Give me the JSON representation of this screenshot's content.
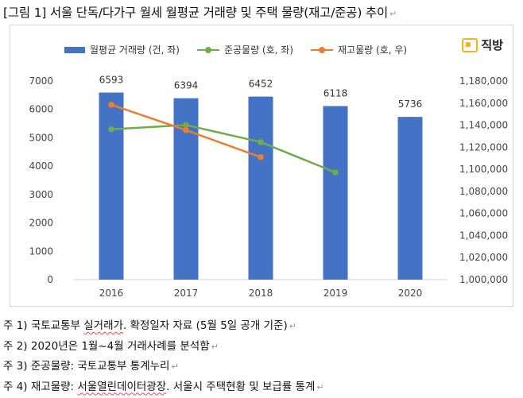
{
  "title": "[그림 1] 서울 단독/다가구 월세 월평균 거래량 및 주택 물량(재고/준공) 추이",
  "logo": {
    "text": "직방"
  },
  "legend": [
    {
      "label": "월평균 거래량 (건, 좌)",
      "color": "#4472c4",
      "kind": "bar"
    },
    {
      "label": "준공물량 (호, 좌)",
      "color": "#70ad47",
      "kind": "line"
    },
    {
      "label": "재고물량 (호, 우)",
      "color": "#ed7d31",
      "kind": "line"
    }
  ],
  "chart_data": {
    "type": "bar",
    "title": "",
    "xlabel": "",
    "ylabel": "",
    "categories": [
      "2016",
      "2017",
      "2018",
      "2019",
      "2020"
    ],
    "ylim": [
      0,
      7000
    ],
    "y_ticks": [
      0,
      1000,
      2000,
      3000,
      4000,
      5000,
      6000,
      7000
    ],
    "y2lim": [
      1000000,
      1180000
    ],
    "y2_ticks": [
      "1,000,000",
      "1,020,000",
      "1,040,000",
      "1,060,000",
      "1,080,000",
      "1,100,000",
      "1,120,000",
      "1,140,000",
      "1,160,000",
      "1,180,000"
    ],
    "y2_tick_values": [
      1000000,
      1020000,
      1040000,
      1060000,
      1080000,
      1100000,
      1120000,
      1140000,
      1160000,
      1180000
    ],
    "grid": false,
    "legend_position": "top",
    "series": [
      {
        "name": "월평균 거래량 (건, 좌)",
        "kind": "bar",
        "axis": "left",
        "color": "#4472c4",
        "values": [
          6593,
          6394,
          6452,
          6118,
          5736
        ],
        "labels": [
          "6593",
          "6394",
          "6452",
          "6118",
          "5736"
        ]
      },
      {
        "name": "준공물량 (호, 좌)",
        "kind": "line",
        "axis": "left",
        "color": "#70ad47",
        "values": [
          5300,
          5450,
          4850,
          3780,
          null
        ]
      },
      {
        "name": "재고물량 (호, 우)",
        "kind": "line",
        "axis": "right",
        "color": "#ed7d31",
        "values": [
          1158500,
          1135500,
          1111000,
          null,
          null
        ]
      }
    ]
  },
  "notes": [
    {
      "prefix": "주 1) ",
      "parts": [
        {
          "text": "국토교통부 ",
          "squig": false
        },
        {
          "text": "실거래가",
          "squig": true
        },
        {
          "text": ". 확정일자 자료 (5월 5일 공개 기준)",
          "squig": false
        }
      ]
    },
    {
      "prefix": "주 2) ",
      "parts": [
        {
          "text": "2020년은 1월~4월 거래사례를 분석함",
          "squig": false
        }
      ]
    },
    {
      "prefix": "주 3) ",
      "parts": [
        {
          "text": "준공물량: 국토교통부 통계누리",
          "squig": false
        }
      ]
    },
    {
      "prefix": "주 4) ",
      "parts": [
        {
          "text": "재고물량: ",
          "squig": false
        },
        {
          "text": "서울열린데이터광장",
          "squig": true
        },
        {
          "text": ". 서울시 주택현황 및 보급률 통계",
          "squig": false
        }
      ]
    }
  ]
}
